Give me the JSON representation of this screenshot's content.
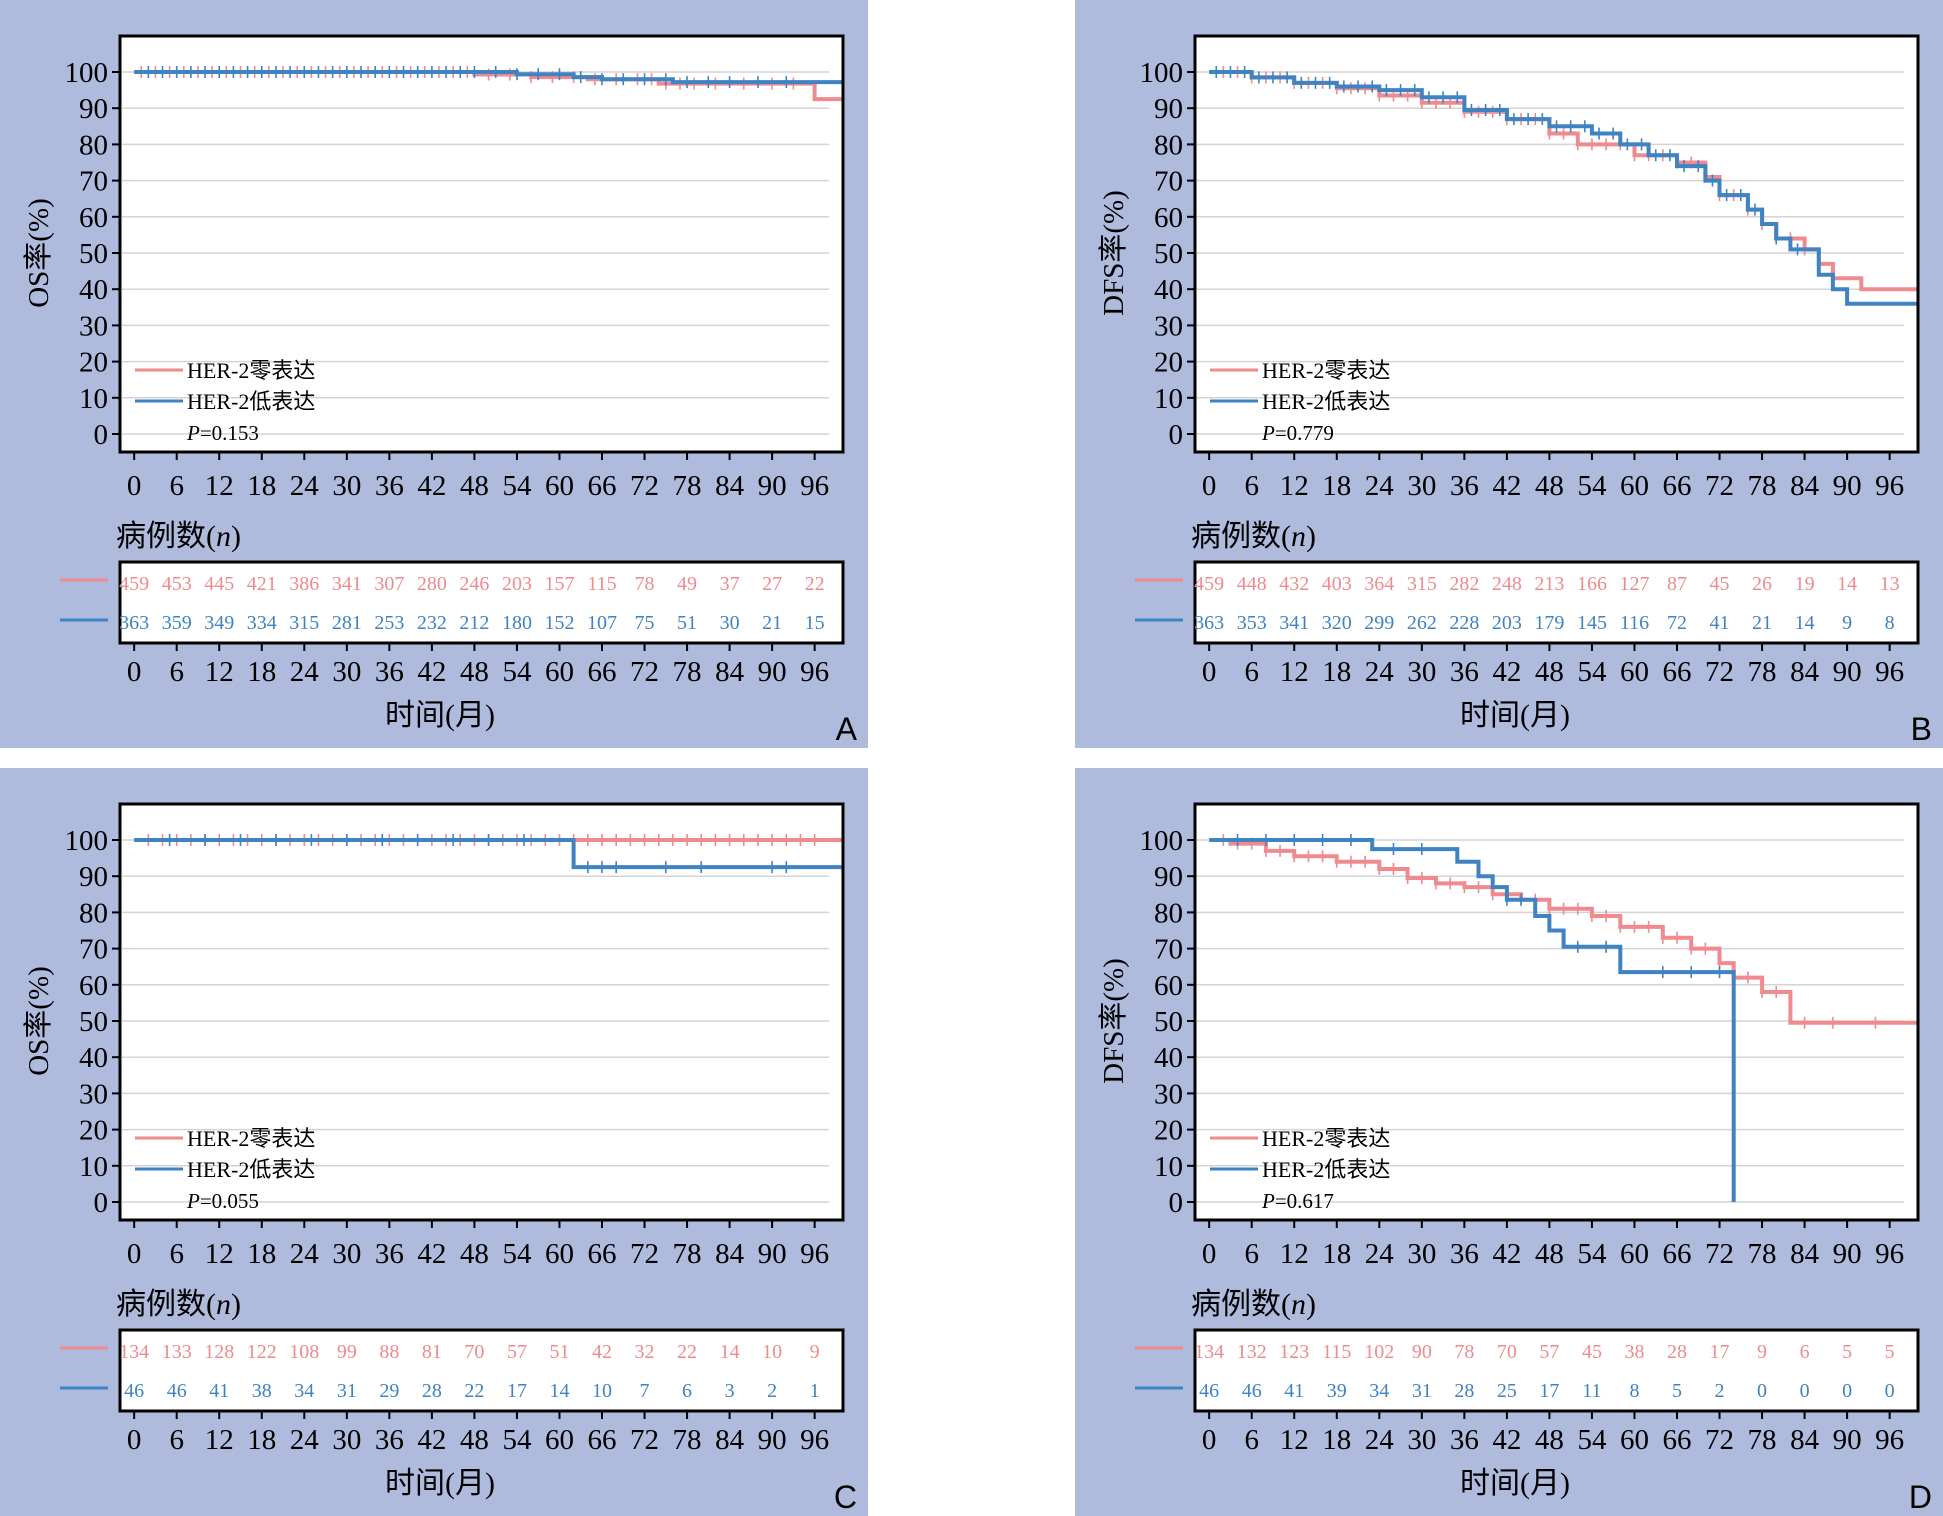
{
  "figure": {
    "background": "#ffffff",
    "panel_background": "#aebbdd",
    "color_zero": "#ef8a8e",
    "color_low": "#3f83c3"
  },
  "chart_data": [
    {
      "panel_label": "A",
      "type": "line",
      "ylabel": "OS率(%)",
      "xlabel": "时间(月)",
      "risk_title": "病例数(",
      "risk_title_n": "n",
      "risk_title_close": ")",
      "xlim": [
        -2,
        100
      ],
      "ylim": [
        0,
        100
      ],
      "x_ticks": [
        "0",
        "6",
        "12",
        "18",
        "24",
        "30",
        "36",
        "42",
        "48",
        "54",
        "60",
        "66",
        "72",
        "78",
        "84",
        "90",
        "96"
      ],
      "y_ticks": [
        "0",
        "10",
        "20",
        "30",
        "40",
        "50",
        "60",
        "70",
        "80",
        "90",
        "100"
      ],
      "legend_position": "bottom-left",
      "p_prefix": "P",
      "p_value": "=0.153",
      "series": [
        {
          "name": "HER-2零表达",
          "color": "#ef8a8e",
          "steps": [
            [
              0,
              100
            ],
            [
              40,
              100
            ],
            [
              48,
              99.3
            ],
            [
              56,
              98.6
            ],
            [
              64,
              98
            ],
            [
              74,
              96.8
            ],
            [
              96,
              96.8
            ],
            [
              96,
              92.5
            ],
            [
              100,
              92.5
            ]
          ],
          "censor_x": [
            1,
            3,
            5,
            7,
            9,
            11,
            13,
            15,
            17,
            19,
            21,
            23,
            25,
            27,
            29,
            31,
            33,
            35,
            37,
            39,
            41,
            43,
            45,
            47,
            50,
            53,
            56,
            59,
            62,
            65,
            68,
            71,
            73,
            75,
            77,
            79,
            82,
            86,
            90,
            93
          ]
        },
        {
          "name": "HER-2低表达",
          "color": "#3f83c3",
          "steps": [
            [
              0,
              100
            ],
            [
              46,
              100
            ],
            [
              54,
              99.4
            ],
            [
              62,
              98.6
            ],
            [
              66,
              98
            ],
            [
              76,
              97.2
            ],
            [
              100,
              97.2
            ]
          ],
          "censor_x": [
            2,
            4,
            6,
            8,
            10,
            12,
            14,
            16,
            18,
            20,
            22,
            24,
            26,
            28,
            30,
            32,
            34,
            36,
            38,
            40,
            42,
            44,
            46,
            48,
            51,
            54,
            57,
            60,
            63,
            66,
            69,
            72,
            75,
            78,
            81,
            84,
            88,
            92
          ]
        }
      ],
      "risk_table": {
        "zero": [
          "459",
          "453",
          "445",
          "421",
          "386",
          "341",
          "307",
          "280",
          "246",
          "203",
          "157",
          "115",
          "78",
          "49",
          "37",
          "27",
          "22"
        ],
        "low": [
          "363",
          "359",
          "349",
          "334",
          "315",
          "281",
          "253",
          "232",
          "212",
          "180",
          "152",
          "107",
          "75",
          "51",
          "30",
          "21",
          "15"
        ]
      }
    },
    {
      "panel_label": "B",
      "type": "line",
      "ylabel": "DFS率(%)",
      "xlabel": "时间(月)",
      "risk_title": "病例数(",
      "risk_title_n": "n",
      "risk_title_close": ")",
      "xlim": [
        -2,
        100
      ],
      "ylim": [
        0,
        100
      ],
      "x_ticks": [
        "0",
        "6",
        "12",
        "18",
        "24",
        "30",
        "36",
        "42",
        "48",
        "54",
        "60",
        "66",
        "72",
        "78",
        "84",
        "90",
        "96"
      ],
      "y_ticks": [
        "0",
        "10",
        "20",
        "30",
        "40",
        "50",
        "60",
        "70",
        "80",
        "90",
        "100"
      ],
      "legend_position": "bottom-left",
      "p_prefix": "P",
      "p_value": "=0.779",
      "series": [
        {
          "name": "HER-2零表达",
          "color": "#ef8a8e",
          "steps": [
            [
              0,
              100
            ],
            [
              6,
              98.5
            ],
            [
              12,
              97
            ],
            [
              18,
              95.5
            ],
            [
              24,
              93.5
            ],
            [
              30,
              91.5
            ],
            [
              36,
              89
            ],
            [
              42,
              87
            ],
            [
              48,
              83
            ],
            [
              52,
              80
            ],
            [
              60,
              77
            ],
            [
              66,
              75
            ],
            [
              70,
              71
            ],
            [
              72,
              66
            ],
            [
              76,
              62
            ],
            [
              78,
              58
            ],
            [
              80,
              54
            ],
            [
              84,
              51
            ],
            [
              86,
              47
            ],
            [
              88,
              43
            ],
            [
              92,
              40
            ],
            [
              100,
              40
            ]
          ],
          "censor_x": [
            2,
            4,
            6,
            8,
            10,
            12,
            14,
            16,
            18,
            20,
            22,
            24,
            26,
            28,
            30,
            32,
            34,
            36,
            38,
            40,
            42,
            44,
            46,
            48,
            50,
            52,
            54,
            56,
            58,
            60,
            62,
            64,
            66,
            68,
            70,
            72,
            74,
            76,
            78,
            80,
            82,
            84,
            86
          ]
        },
        {
          "name": "HER-2低表达",
          "color": "#3f83c3",
          "steps": [
            [
              0,
              100
            ],
            [
              6,
              98.5
            ],
            [
              12,
              97
            ],
            [
              18,
              96
            ],
            [
              24,
              95
            ],
            [
              30,
              93
            ],
            [
              36,
              89.5
            ],
            [
              42,
              87
            ],
            [
              48,
              85
            ],
            [
              54,
              83
            ],
            [
              58,
              80
            ],
            [
              62,
              77
            ],
            [
              66,
              74
            ],
            [
              70,
              70
            ],
            [
              72,
              66
            ],
            [
              76,
              62
            ],
            [
              78,
              58
            ],
            [
              80,
              54
            ],
            [
              82,
              51
            ],
            [
              86,
              44
            ],
            [
              88,
              40
            ],
            [
              90,
              36
            ],
            [
              100,
              36
            ]
          ],
          "censor_x": [
            1,
            3,
            5,
            7,
            9,
            11,
            13,
            15,
            17,
            19,
            21,
            23,
            25,
            27,
            29,
            31,
            33,
            35,
            37,
            39,
            41,
            43,
            45,
            47,
            49,
            51,
            53,
            55,
            57,
            59,
            61,
            63,
            65,
            67,
            69,
            71,
            73,
            75,
            77,
            80,
            83
          ]
        }
      ],
      "risk_table": {
        "zero": [
          "459",
          "448",
          "432",
          "403",
          "364",
          "315",
          "282",
          "248",
          "213",
          "166",
          "127",
          "87",
          "45",
          "26",
          "19",
          "14",
          "13"
        ],
        "low": [
          "363",
          "353",
          "341",
          "320",
          "299",
          "262",
          "228",
          "203",
          "179",
          "145",
          "116",
          "72",
          "41",
          "21",
          "14",
          "9",
          "8"
        ]
      }
    },
    {
      "panel_label": "C",
      "type": "line",
      "ylabel": "OS率(%)",
      "xlabel": "时间(月)",
      "risk_title": "病例数(",
      "risk_title_n": "n",
      "risk_title_close": ")",
      "xlim": [
        -2,
        100
      ],
      "ylim": [
        0,
        100
      ],
      "x_ticks": [
        "0",
        "6",
        "12",
        "18",
        "24",
        "30",
        "36",
        "42",
        "48",
        "54",
        "60",
        "66",
        "72",
        "78",
        "84",
        "90",
        "96"
      ],
      "y_ticks": [
        "0",
        "10",
        "20",
        "30",
        "40",
        "50",
        "60",
        "70",
        "80",
        "90",
        "100"
      ],
      "legend_position": "bottom-left",
      "p_prefix": "P",
      "p_value": "=0.055",
      "series": [
        {
          "name": "HER-2零表达",
          "color": "#ef8a8e",
          "steps": [
            [
              0,
              100
            ],
            [
              100,
              100
            ]
          ],
          "censor_x": [
            2,
            4,
            6,
            8,
            10,
            12,
            14,
            16,
            18,
            20,
            22,
            24,
            26,
            28,
            30,
            32,
            34,
            36,
            38,
            40,
            42,
            44,
            46,
            48,
            50,
            52,
            54,
            56,
            58,
            60,
            62,
            64,
            66,
            68,
            70,
            72,
            74,
            76,
            78,
            80,
            82,
            84,
            86,
            88,
            90,
            92,
            94,
            96
          ]
        },
        {
          "name": "HER-2低表达",
          "color": "#3f83c3",
          "steps": [
            [
              0,
              100
            ],
            [
              62,
              100
            ],
            [
              62,
              92.5
            ],
            [
              100,
              92.5
            ]
          ],
          "censor_x": [
            5,
            10,
            15,
            20,
            25,
            30,
            35,
            40,
            45,
            50,
            55,
            64,
            66,
            68,
            75,
            80,
            90,
            92
          ]
        }
      ],
      "risk_table": {
        "zero": [
          "134",
          "133",
          "128",
          "122",
          "108",
          "99",
          "88",
          "81",
          "70",
          "57",
          "51",
          "42",
          "32",
          "22",
          "14",
          "10",
          "9"
        ],
        "low": [
          "46",
          "46",
          "41",
          "38",
          "34",
          "31",
          "29",
          "28",
          "22",
          "17",
          "14",
          "10",
          "7",
          "6",
          "3",
          "2",
          "1"
        ]
      }
    },
    {
      "panel_label": "D",
      "type": "line",
      "ylabel": "DFS率(%)",
      "xlabel": "时间(月)",
      "risk_title": "病例数(",
      "risk_title_n": "n",
      "risk_title_close": ")",
      "xlim": [
        -2,
        100
      ],
      "ylim": [
        0,
        100
      ],
      "x_ticks": [
        "0",
        "6",
        "12",
        "18",
        "24",
        "30",
        "36",
        "42",
        "48",
        "54",
        "60",
        "66",
        "72",
        "78",
        "84",
        "90",
        "96"
      ],
      "y_ticks": [
        "0",
        "10",
        "20",
        "30",
        "40",
        "50",
        "60",
        "70",
        "80",
        "90",
        "100"
      ],
      "legend_position": "bottom-left",
      "p_prefix": "P",
      "p_value": "=0.617",
      "series": [
        {
          "name": "HER-2零表达",
          "color": "#ef8a8e",
          "steps": [
            [
              0,
              100
            ],
            [
              3,
              99
            ],
            [
              8,
              97
            ],
            [
              12,
              95.5
            ],
            [
              18,
              94
            ],
            [
              24,
              92
            ],
            [
              28,
              89.5
            ],
            [
              32,
              88
            ],
            [
              36,
              87
            ],
            [
              40,
              85
            ],
            [
              44,
              83.5
            ],
            [
              48,
              81
            ],
            [
              54,
              79
            ],
            [
              58,
              76
            ],
            [
              64,
              73
            ],
            [
              68,
              70
            ],
            [
              72,
              66
            ],
            [
              74,
              62
            ],
            [
              78,
              58
            ],
            [
              82,
              58
            ],
            [
              82,
              49.5
            ],
            [
              100,
              49.5
            ]
          ],
          "censor_x": [
            2,
            4,
            6,
            8,
            10,
            12,
            14,
            16,
            18,
            20,
            22,
            24,
            26,
            28,
            30,
            32,
            34,
            36,
            38,
            40,
            42,
            44,
            46,
            48,
            50,
            52,
            54,
            56,
            58,
            60,
            62,
            64,
            66,
            68,
            70,
            72,
            74,
            76,
            78,
            80,
            84,
            88,
            94
          ]
        },
        {
          "name": "HER-2低表达",
          "color": "#3f83c3",
          "steps": [
            [
              0,
              100
            ],
            [
              23,
              100
            ],
            [
              23,
              97.5
            ],
            [
              35,
              97.5
            ],
            [
              35,
              94
            ],
            [
              38,
              94
            ],
            [
              38,
              90
            ],
            [
              40,
              90
            ],
            [
              40,
              87
            ],
            [
              42,
              87
            ],
            [
              42,
              83.5
            ],
            [
              46,
              83.5
            ],
            [
              46,
              79
            ],
            [
              48,
              79
            ],
            [
              48,
              75
            ],
            [
              50,
              75
            ],
            [
              50,
              70.5
            ],
            [
              58,
              70.5
            ],
            [
              58,
              63.5
            ],
            [
              74,
              63.5
            ],
            [
              74,
              0
            ]
          ],
          "censor_x": [
            4,
            8,
            12,
            16,
            20,
            26,
            30,
            42,
            44,
            52,
            56,
            64,
            68,
            72
          ]
        }
      ],
      "risk_table": {
        "zero": [
          "134",
          "132",
          "123",
          "115",
          "102",
          "90",
          "78",
          "70",
          "57",
          "45",
          "38",
          "28",
          "17",
          "9",
          "6",
          "5",
          "5"
        ],
        "low": [
          "46",
          "46",
          "41",
          "39",
          "34",
          "31",
          "28",
          "25",
          "17",
          "11",
          "8",
          "5",
          "2",
          "0",
          "0",
          "0",
          "0"
        ]
      }
    }
  ]
}
